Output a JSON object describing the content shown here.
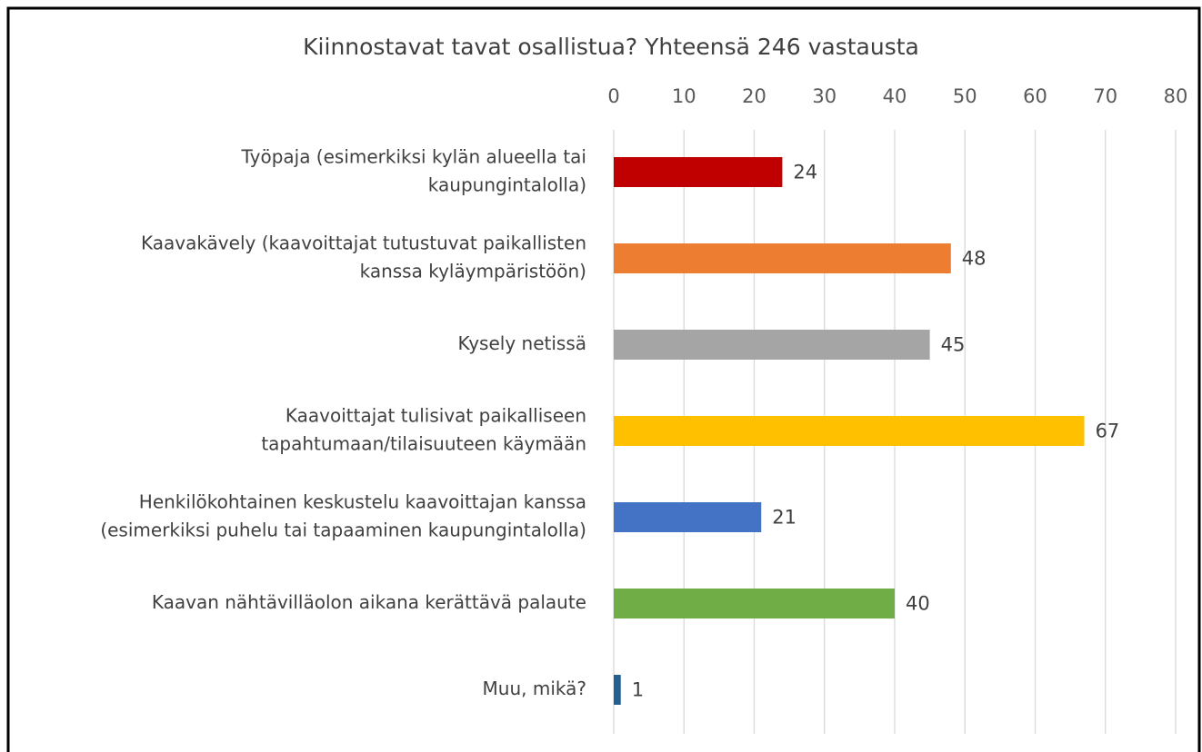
{
  "chart_data": {
    "type": "barh",
    "title": "Kiinnostavat tavat osallistua? Yhteensä 246 vastausta",
    "categories": [
      [
        "Työpaja (esimerkiksi kylän alueella tai",
        "kaupungintalolla)"
      ],
      [
        "Kaavakävely (kaavoittajat tutustuvat paikallisten",
        "kanssa kyläympäristöön)"
      ],
      [
        "Kysely netissä"
      ],
      [
        "Kaavoittajat tulisivat paikalliseen",
        "tapahtumaan/tilaisuuteen käymään"
      ],
      [
        "Henkilökohtainen keskustelu kaavoittajan kanssa",
        "(esimerkiksi puhelu tai tapaaminen kaupungintalolla)"
      ],
      [
        "Kaavan nähtävilläolon aikana kerättävä palaute"
      ],
      [
        "Muu, mikä?"
      ]
    ],
    "values": [
      24,
      48,
      45,
      67,
      21,
      40,
      1
    ],
    "colors": [
      "#c00000",
      "#ed7d31",
      "#a5a5a5",
      "#ffc000",
      "#4472c4",
      "#70ad47",
      "#255e91"
    ],
    "xlim": [
      0,
      80
    ],
    "xticks": [
      0,
      10,
      20,
      30,
      40,
      50,
      60,
      70,
      80
    ],
    "grid": true
  }
}
